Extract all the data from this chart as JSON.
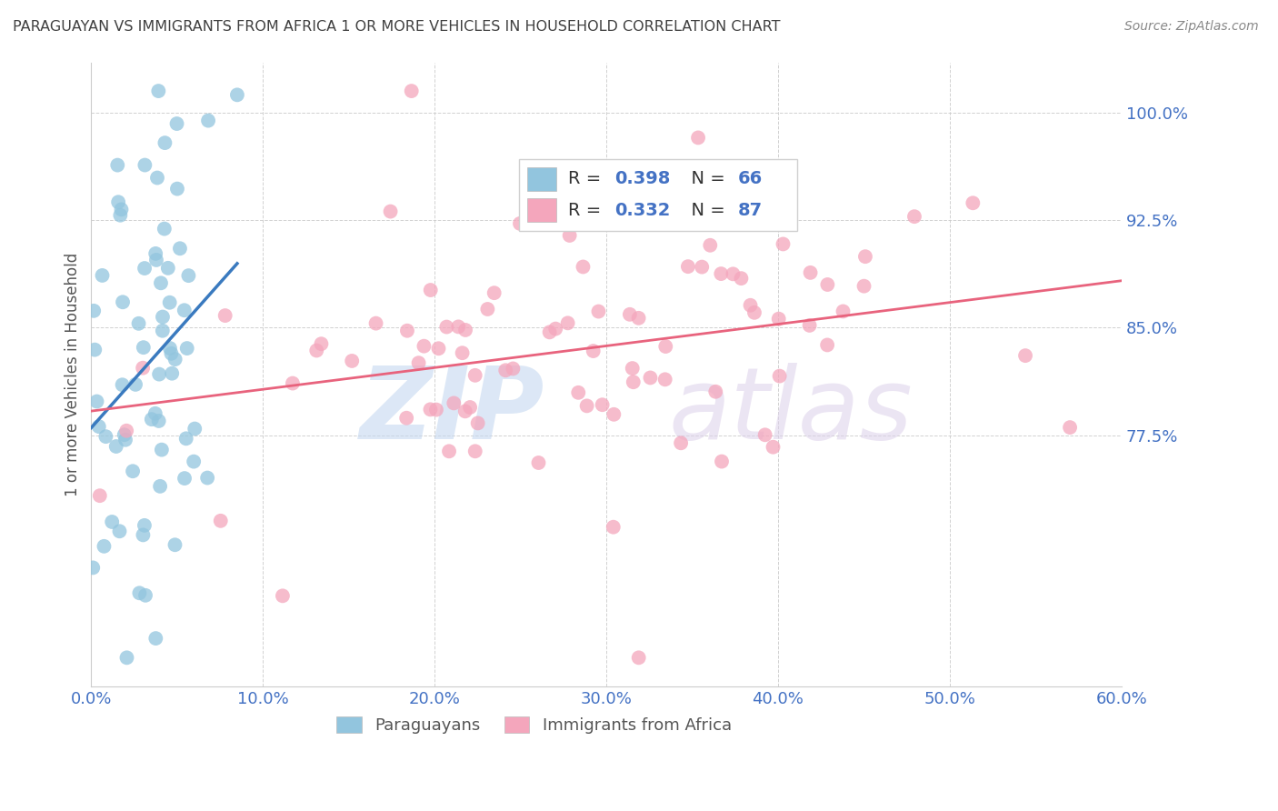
{
  "title": "PARAGUAYAN VS IMMIGRANTS FROM AFRICA 1 OR MORE VEHICLES IN HOUSEHOLD CORRELATION CHART",
  "source": "Source: ZipAtlas.com",
  "ylabel": "1 or more Vehicles in Household",
  "xlim": [
    0.0,
    60.0
  ],
  "ylim": [
    60.0,
    103.5
  ],
  "yticks": [
    77.5,
    85.0,
    92.5,
    100.0
  ],
  "xticks": [
    0.0,
    10.0,
    20.0,
    30.0,
    40.0,
    50.0,
    60.0
  ],
  "blue_R": 0.398,
  "blue_N": 66,
  "pink_R": 0.332,
  "pink_N": 87,
  "blue_color": "#92c5de",
  "pink_color": "#f4a6bc",
  "blue_line_color": "#3a7abf",
  "pink_line_color": "#e8637d",
  "title_color": "#404040",
  "axis_color": "#4472c4",
  "source_color": "#888888",
  "legend_text_color": "#333333",
  "legend_value_color": "#4472c4"
}
